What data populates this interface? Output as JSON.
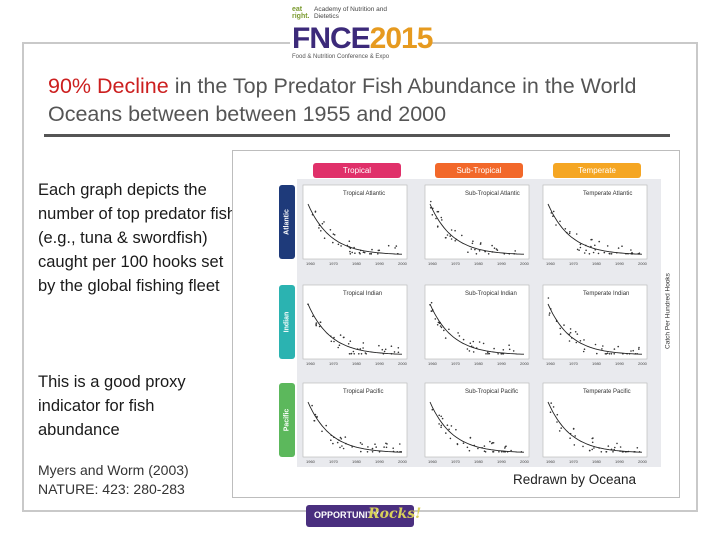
{
  "logo": {
    "eat_right": "eat right.",
    "academy": "Academy of Nutrition and Dietetics",
    "fnce": "FNCE",
    "year": "2015",
    "subtitle": "Food & Nutrition Conference & Expo"
  },
  "slide": {
    "title_accent": "90% Decline",
    "title_rest": " in the Top Predator Fish Abundance in the World Oceans between between 1955 and 2000",
    "paragraph_1": "Each graph depicts the number of top predator fish (e.g., tuna & swordfish) caught per 100 hooks set by the global fishing fleet",
    "paragraph_2": "This is a good proxy indicator for fish abundance",
    "citation": "Myers and Worm (2003) NATURE: 423: 280-283",
    "credit": "Redrawn by Oceana"
  },
  "figure": {
    "columns": [
      "Tropical",
      "Sub-Tropical",
      "Temperate"
    ],
    "rows": [
      "Atlantic",
      "Indian",
      "Pacific"
    ],
    "y_axis_label": "Catch Per Hundred Hooks",
    "x_ticks": [
      "1960",
      "1970",
      "1980",
      "1990",
      "2000"
    ],
    "panels": [
      [
        "Tropical Atlantic",
        "Sub-Tropical Atlantic",
        "Temperate Atlantic"
      ],
      [
        "Tropical Indian",
        "Sub-Tropical Indian",
        "Temperate Indian"
      ],
      [
        "Tropical Pacific",
        "Sub-Tropical Pacific",
        "Temperate Pacific"
      ]
    ],
    "colors": {
      "tropical": "#e0306a",
      "subtropical": "#f2682a",
      "temperate": "#f5a623",
      "atlantic": "#1e3a7a",
      "indian": "#2bb3b1",
      "pacific": "#5cb85c"
    }
  },
  "footer": {
    "opportunity": "OPPORTUNITY",
    "rocks": "Rocks!"
  }
}
